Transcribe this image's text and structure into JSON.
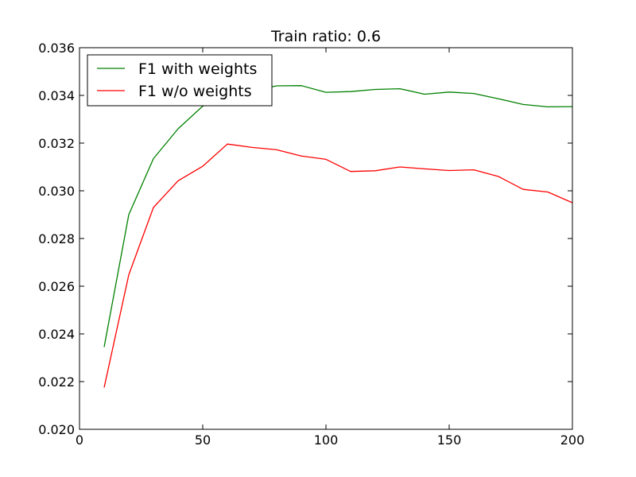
{
  "chart_data": {
    "type": "line",
    "title": "Train ratio: 0.6",
    "xlabel": "",
    "ylabel": "",
    "xlim": [
      0,
      200
    ],
    "ylim": [
      0.02,
      0.036
    ],
    "xticks": [
      0,
      50,
      100,
      150,
      200
    ],
    "xtick_labels": [
      "0",
      "50",
      "100",
      "150",
      "200"
    ],
    "yticks": [
      0.02,
      0.022,
      0.024,
      0.026,
      0.028,
      0.03,
      0.032,
      0.034,
      0.036
    ],
    "ytick_labels": [
      "0.020",
      "0.022",
      "0.024",
      "0.026",
      "0.028",
      "0.030",
      "0.032",
      "0.034",
      "0.036"
    ],
    "grid": false,
    "legend_position": "top-left",
    "x": [
      10,
      20,
      30,
      40,
      50,
      60,
      70,
      80,
      90,
      100,
      110,
      120,
      130,
      140,
      150,
      160,
      170,
      180,
      190,
      200
    ],
    "series": [
      {
        "name": "F1 with weights",
        "color": "#008000",
        "values": [
          0.02345,
          0.029,
          0.03135,
          0.0326,
          0.03355,
          0.03395,
          0.0342,
          0.0344,
          0.03441,
          0.03413,
          0.03416,
          0.03425,
          0.03428,
          0.03405,
          0.03414,
          0.03408,
          0.03386,
          0.03362,
          0.03352,
          0.03353
        ]
      },
      {
        "name": "F1 w/o weights",
        "color": "#ff0000",
        "values": [
          0.02175,
          0.02648,
          0.0293,
          0.03042,
          0.03103,
          0.03196,
          0.03182,
          0.03172,
          0.03146,
          0.03132,
          0.03081,
          0.03084,
          0.031,
          0.03092,
          0.03085,
          0.03088,
          0.0306,
          0.03006,
          0.02995,
          0.0295
        ]
      }
    ]
  }
}
